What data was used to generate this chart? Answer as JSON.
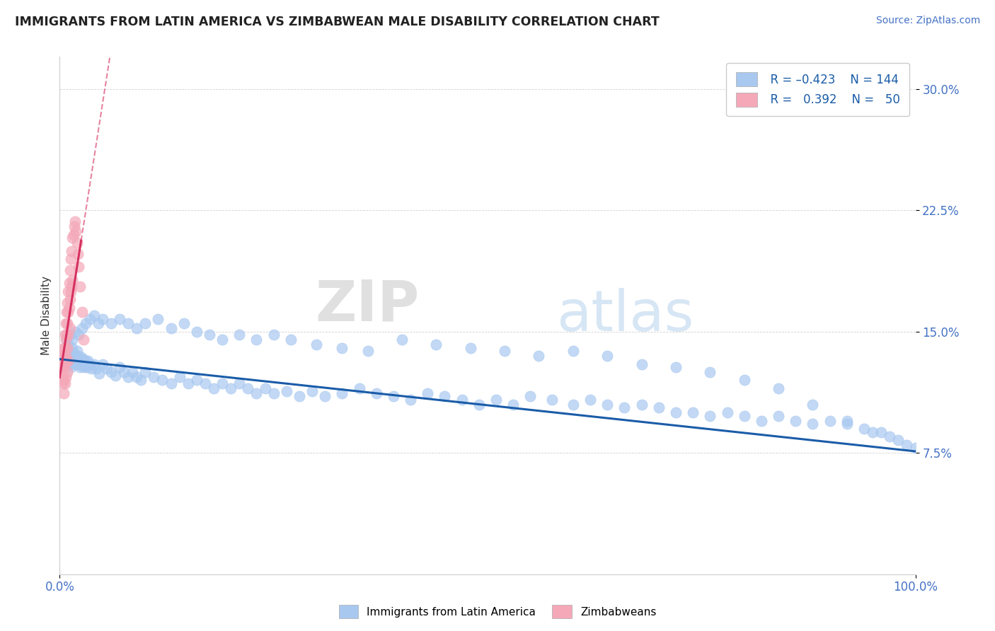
{
  "title": "IMMIGRANTS FROM LATIN AMERICA VS ZIMBABWEAN MALE DISABILITY CORRELATION CHART",
  "source_text": "Source: ZipAtlas.com",
  "ylabel": "Male Disability",
  "xlim": [
    0.0,
    1.0
  ],
  "ylim": [
    0.0,
    0.32
  ],
  "x_tick_labels": [
    "0.0%",
    "100.0%"
  ],
  "y_tick_labels": [
    "7.5%",
    "15.0%",
    "22.5%",
    "30.0%"
  ],
  "y_tick_values": [
    0.075,
    0.15,
    0.225,
    0.3
  ],
  "blue_color": "#a8c8f0",
  "pink_color": "#f4a8b8",
  "blue_line_color": "#1a5ca8",
  "pink_line_color": "#d63060",
  "pink_line_dash": [
    4,
    3
  ],
  "watermark_zip": "ZIP",
  "watermark_atlas": "atlas",
  "legend_label1": "Immigrants from Latin America",
  "legend_label2": "Zimbabweans",
  "blue_scatter_x": [
    0.005,
    0.008,
    0.01,
    0.012,
    0.013,
    0.015,
    0.016,
    0.017,
    0.018,
    0.019,
    0.02,
    0.021,
    0.022,
    0.023,
    0.024,
    0.025,
    0.026,
    0.027,
    0.028,
    0.029,
    0.03,
    0.031,
    0.032,
    0.033,
    0.035,
    0.037,
    0.04,
    0.043,
    0.046,
    0.05,
    0.055,
    0.06,
    0.065,
    0.07,
    0.075,
    0.08,
    0.085,
    0.09,
    0.095,
    0.1,
    0.11,
    0.12,
    0.13,
    0.14,
    0.15,
    0.16,
    0.17,
    0.18,
    0.19,
    0.2,
    0.21,
    0.22,
    0.23,
    0.24,
    0.25,
    0.265,
    0.28,
    0.295,
    0.31,
    0.33,
    0.35,
    0.37,
    0.39,
    0.41,
    0.43,
    0.45,
    0.47,
    0.49,
    0.51,
    0.53,
    0.55,
    0.575,
    0.6,
    0.62,
    0.64,
    0.66,
    0.68,
    0.7,
    0.72,
    0.74,
    0.76,
    0.78,
    0.8,
    0.82,
    0.84,
    0.86,
    0.88,
    0.9,
    0.92,
    0.94,
    0.95,
    0.96,
    0.97,
    0.98,
    0.99,
    1.0,
    0.008,
    0.01,
    0.012,
    0.015,
    0.018,
    0.022,
    0.026,
    0.03,
    0.035,
    0.04,
    0.045,
    0.05,
    0.06,
    0.07,
    0.08,
    0.09,
    0.1,
    0.115,
    0.13,
    0.145,
    0.16,
    0.175,
    0.19,
    0.21,
    0.23,
    0.25,
    0.27,
    0.3,
    0.33,
    0.36,
    0.4,
    0.44,
    0.48,
    0.52,
    0.56,
    0.6,
    0.64,
    0.68,
    0.72,
    0.76,
    0.8,
    0.84,
    0.88,
    0.92
  ],
  "blue_scatter_y": [
    0.135,
    0.132,
    0.138,
    0.13,
    0.128,
    0.14,
    0.137,
    0.133,
    0.135,
    0.13,
    0.138,
    0.135,
    0.132,
    0.13,
    0.128,
    0.134,
    0.131,
    0.129,
    0.133,
    0.128,
    0.132,
    0.13,
    0.128,
    0.132,
    0.13,
    0.127,
    0.13,
    0.127,
    0.124,
    0.13,
    0.127,
    0.125,
    0.123,
    0.128,
    0.125,
    0.122,
    0.125,
    0.122,
    0.12,
    0.125,
    0.122,
    0.12,
    0.118,
    0.122,
    0.118,
    0.12,
    0.118,
    0.115,
    0.118,
    0.115,
    0.118,
    0.115,
    0.112,
    0.115,
    0.112,
    0.113,
    0.11,
    0.113,
    0.11,
    0.112,
    0.115,
    0.112,
    0.11,
    0.108,
    0.112,
    0.11,
    0.108,
    0.105,
    0.108,
    0.105,
    0.11,
    0.108,
    0.105,
    0.108,
    0.105,
    0.103,
    0.105,
    0.103,
    0.1,
    0.1,
    0.098,
    0.1,
    0.098,
    0.095,
    0.098,
    0.095,
    0.093,
    0.095,
    0.093,
    0.09,
    0.088,
    0.088,
    0.085,
    0.083,
    0.08,
    0.078,
    0.145,
    0.142,
    0.148,
    0.145,
    0.15,
    0.148,
    0.152,
    0.155,
    0.158,
    0.16,
    0.155,
    0.158,
    0.155,
    0.158,
    0.155,
    0.152,
    0.155,
    0.158,
    0.152,
    0.155,
    0.15,
    0.148,
    0.145,
    0.148,
    0.145,
    0.148,
    0.145,
    0.142,
    0.14,
    0.138,
    0.145,
    0.142,
    0.14,
    0.138,
    0.135,
    0.138,
    0.135,
    0.13,
    0.128,
    0.125,
    0.12,
    0.115,
    0.105,
    0.095
  ],
  "pink_scatter_x": [
    0.002,
    0.003,
    0.003,
    0.004,
    0.004,
    0.005,
    0.005,
    0.005,
    0.005,
    0.005,
    0.006,
    0.006,
    0.006,
    0.006,
    0.007,
    0.007,
    0.007,
    0.007,
    0.008,
    0.008,
    0.008,
    0.009,
    0.009,
    0.009,
    0.009,
    0.01,
    0.01,
    0.01,
    0.01,
    0.011,
    0.011,
    0.012,
    0.012,
    0.012,
    0.013,
    0.013,
    0.014,
    0.014,
    0.015,
    0.015,
    0.016,
    0.017,
    0.018,
    0.019,
    0.02,
    0.021,
    0.022,
    0.024,
    0.026,
    0.028
  ],
  "pink_scatter_y": [
    0.128,
    0.135,
    0.122,
    0.13,
    0.118,
    0.14,
    0.135,
    0.128,
    0.12,
    0.112,
    0.148,
    0.14,
    0.13,
    0.118,
    0.155,
    0.145,
    0.135,
    0.122,
    0.162,
    0.148,
    0.132,
    0.168,
    0.155,
    0.14,
    0.125,
    0.175,
    0.162,
    0.148,
    0.132,
    0.18,
    0.165,
    0.188,
    0.17,
    0.152,
    0.195,
    0.175,
    0.2,
    0.178,
    0.208,
    0.182,
    0.21,
    0.215,
    0.218,
    0.212,
    0.205,
    0.198,
    0.19,
    0.178,
    0.162,
    0.145
  ],
  "pink_line_x_start": 0.0,
  "pink_line_x_end": 0.025,
  "blue_line_y_start": 0.133,
  "blue_line_y_end": 0.076
}
